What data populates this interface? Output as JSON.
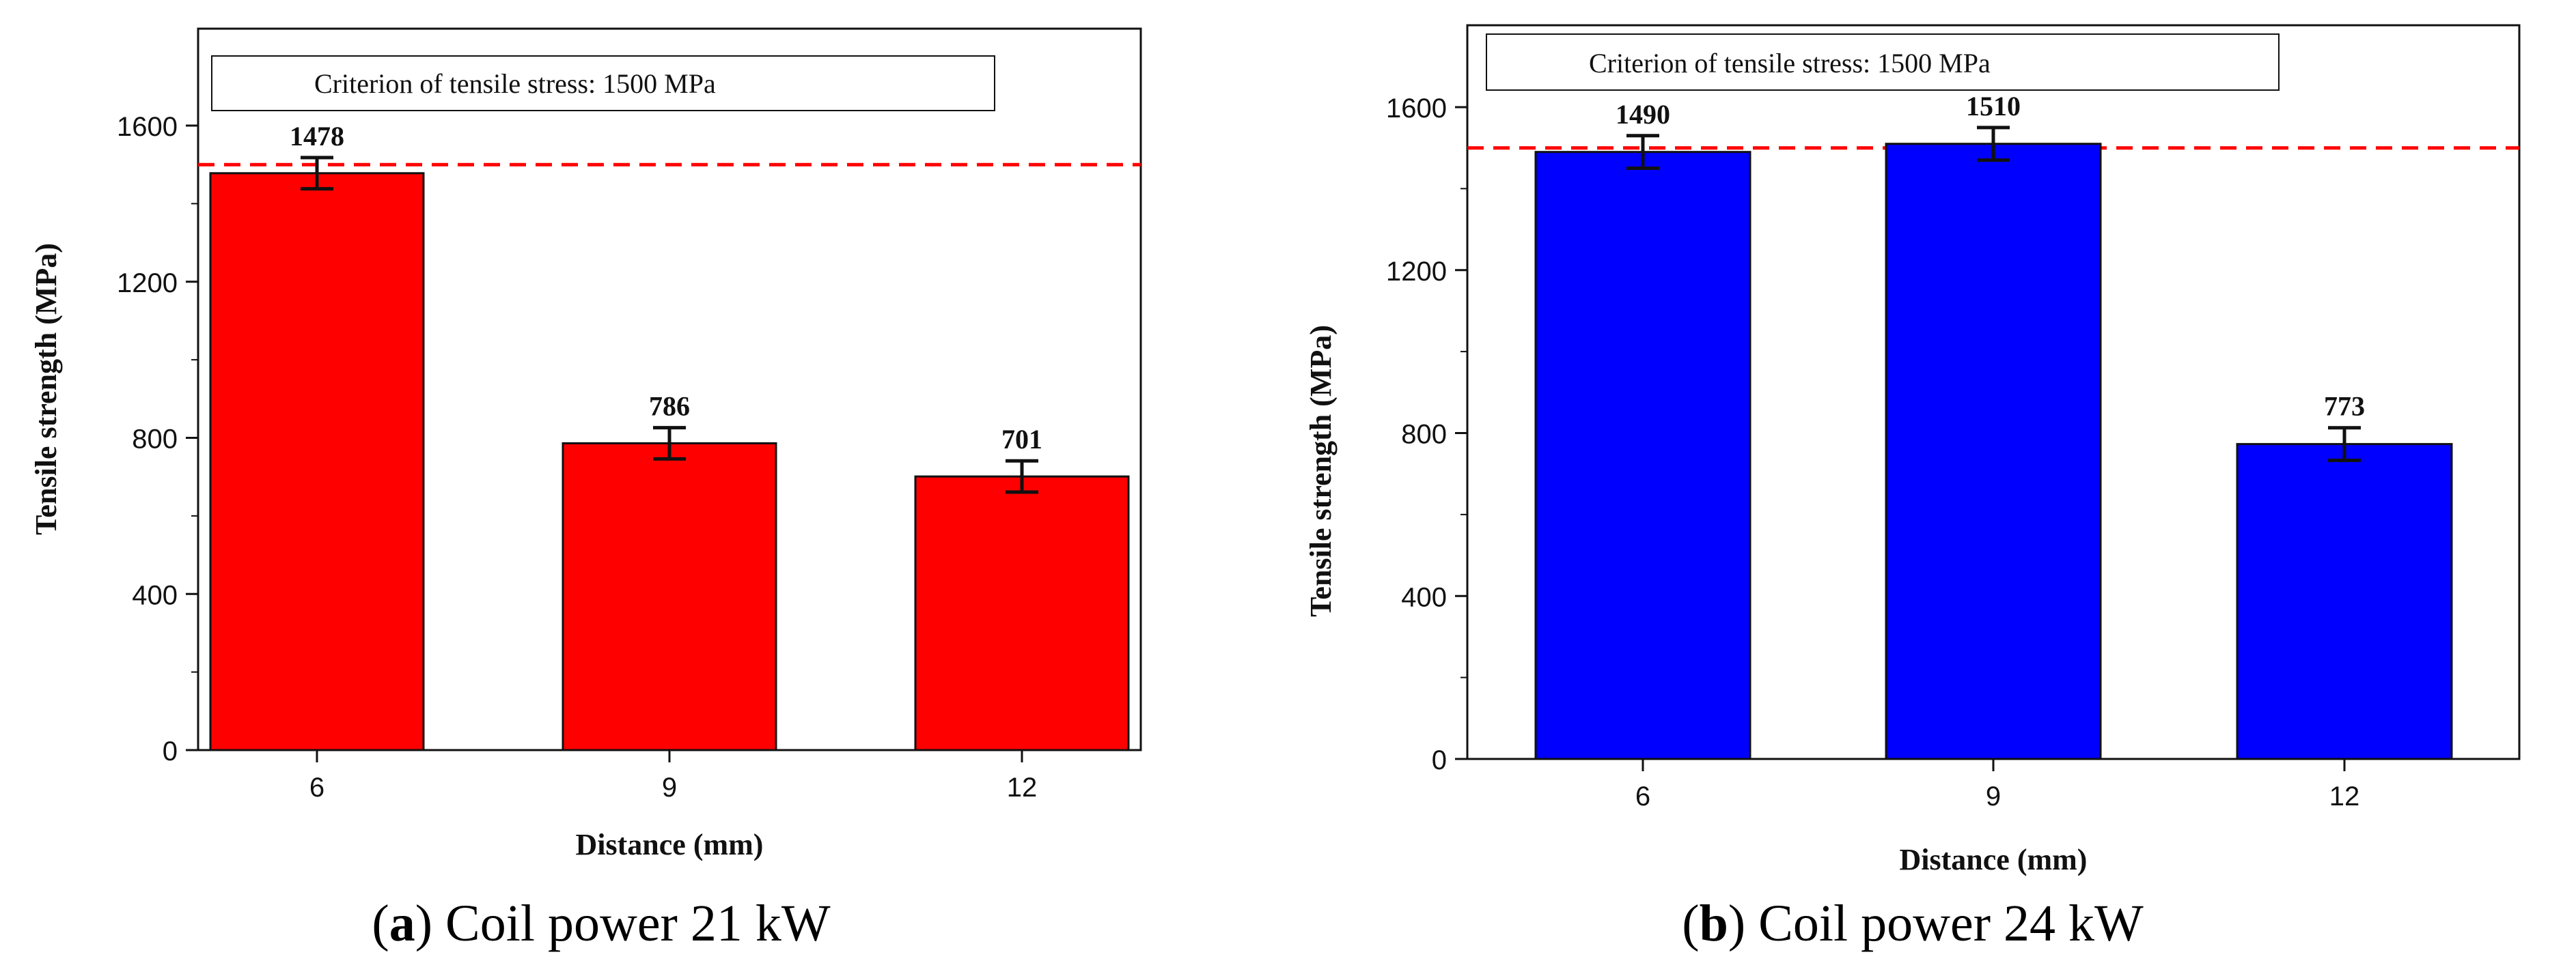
{
  "chart_data": [
    {
      "type": "bar",
      "caption_label": "a",
      "caption_text": "Coil power 21 kW",
      "categories": [
        "6",
        "9",
        "12"
      ],
      "values": [
        1478,
        786,
        701
      ],
      "errors": [
        40,
        40,
        40
      ],
      "value_labels": [
        "1478",
        "786",
        "701"
      ],
      "bar_color": "#ff0000",
      "xlabel": "Distance (mm)",
      "ylabel": "Tensile strength (MPa)",
      "ylim": [
        0,
        1800
      ],
      "yticks": [
        "0",
        "400",
        "800",
        "1200",
        "1600"
      ],
      "criterion_value": 1500,
      "criterion_color": "#ff0000",
      "legend_text": "Criterion of tensile stress: 1500 MPa"
    },
    {
      "type": "bar",
      "caption_label": "b",
      "caption_text": "Coil power 24 kW",
      "categories": [
        "6",
        "9",
        "12"
      ],
      "values": [
        1490,
        1510,
        773
      ],
      "errors": [
        40,
        40,
        40
      ],
      "value_labels": [
        "1490",
        "1510",
        "773"
      ],
      "bar_color": "#0000ff",
      "xlabel": "Distance (mm)",
      "ylabel": "Tensile strength (MPa)",
      "ylim": [
        0,
        1800
      ],
      "yticks": [
        "0",
        "400",
        "800",
        "1200",
        "1600"
      ],
      "criterion_value": 1500,
      "criterion_color": "#ff0000",
      "legend_text": "Criterion of tensile stress: 1500 MPa"
    }
  ]
}
